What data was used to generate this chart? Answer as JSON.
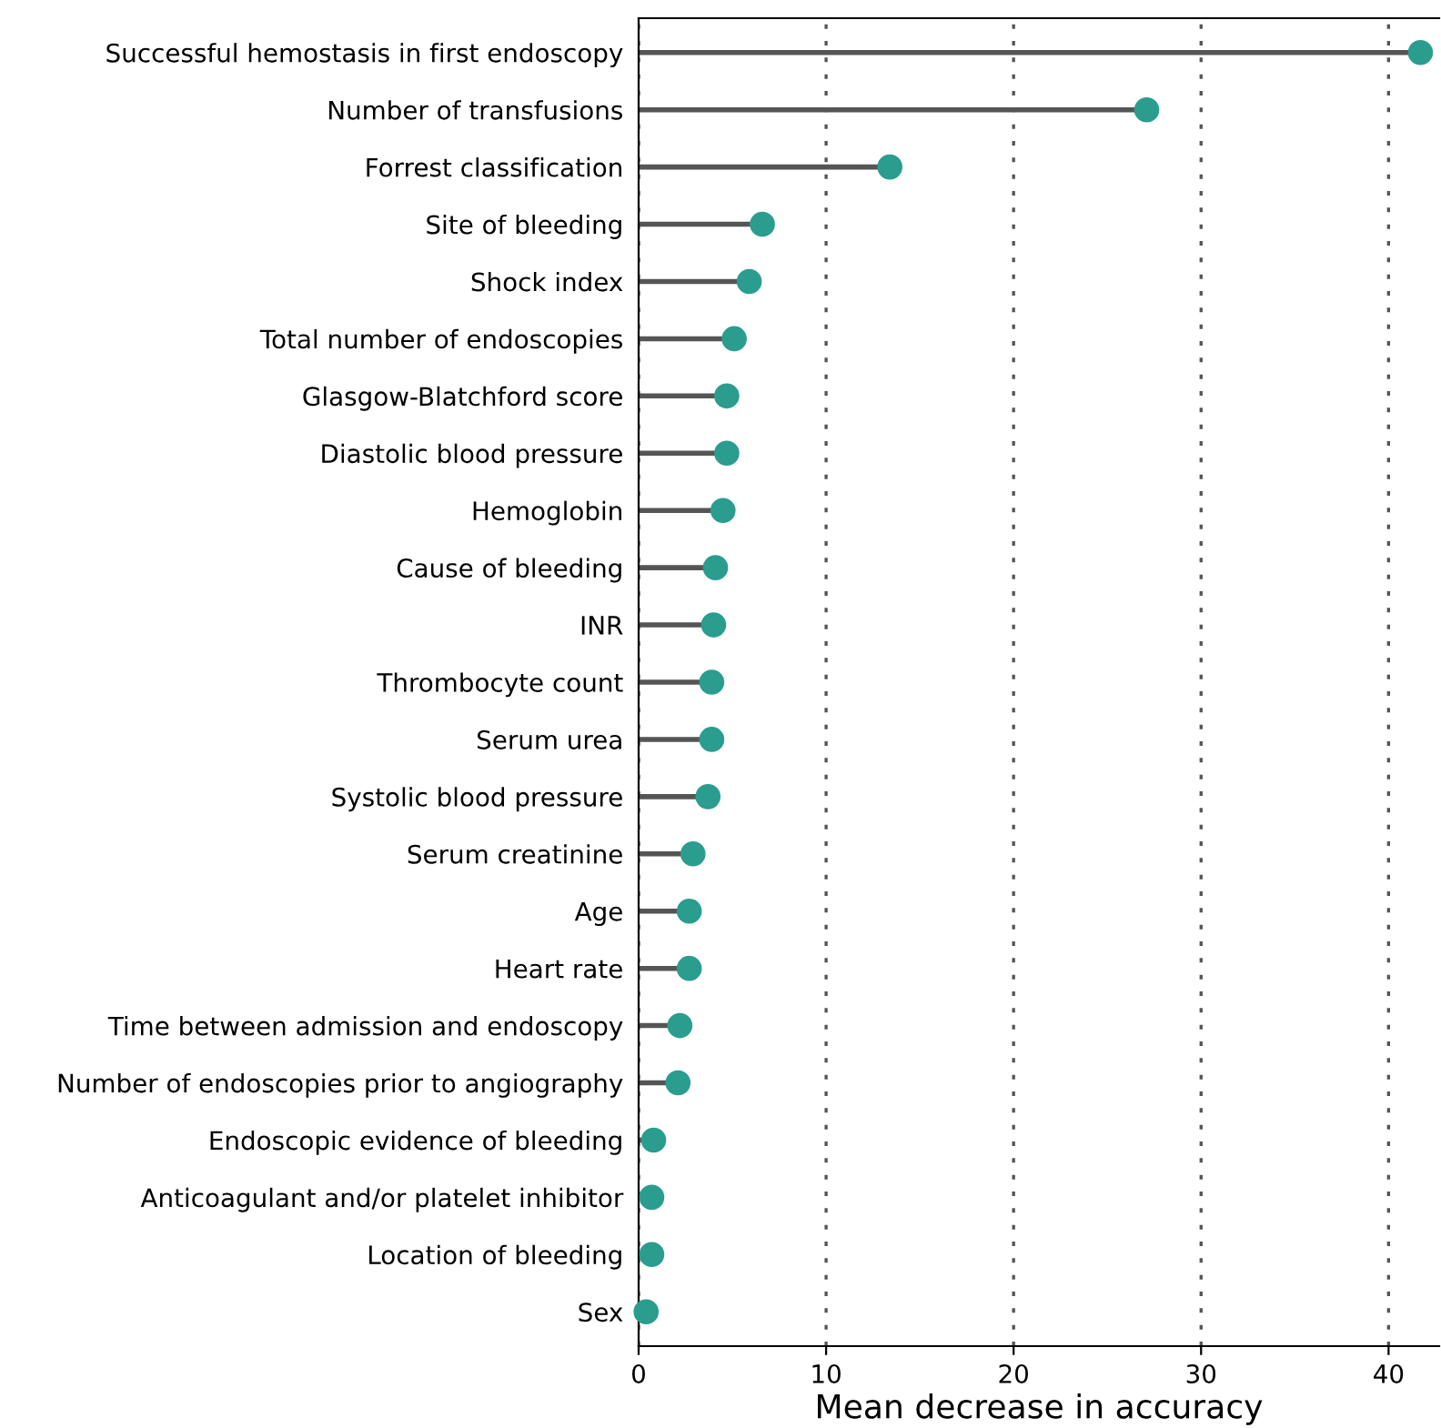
{
  "chart_data": {
    "type": "lollipop",
    "orientation": "horizontal",
    "xlabel": "Mean decrease in accuracy",
    "categories": [
      "Successful hemostasis in first endoscopy",
      "Number of transfusions",
      "Forrest classification",
      "Site of bleeding",
      "Shock index",
      "Total number of endoscopies",
      "Glasgow-Blatchford score",
      "Diastolic blood pressure",
      "Hemoglobin",
      "Cause of bleeding",
      "INR",
      "Thrombocyte count",
      "Serum urea",
      "Systolic blood pressure",
      "Serum creatinine",
      "Age",
      "Heart rate",
      "Time between admission and endoscopy",
      "Number of endoscopies prior to angiography",
      "Endoscopic evidence of bleeding",
      "Anticoagulant and/or platelet inhibitor",
      "Location of bleeding",
      "Sex"
    ],
    "series": [
      {
        "color": "#2a9d8f",
        "values": [
          41.7,
          27.1,
          13.4,
          6.6,
          5.9,
          5.1,
          4.7,
          4.7,
          4.5,
          4.1,
          4.0,
          3.9,
          3.9,
          3.7,
          2.9,
          2.7,
          2.7,
          2.2,
          2.1,
          0.8,
          0.7,
          0.7,
          0.4
        ]
      }
    ],
    "xlim": [
      0,
      42.7
    ],
    "xticks": [
      0,
      10,
      20,
      30,
      40
    ],
    "grid": "x",
    "marker": "circle"
  }
}
